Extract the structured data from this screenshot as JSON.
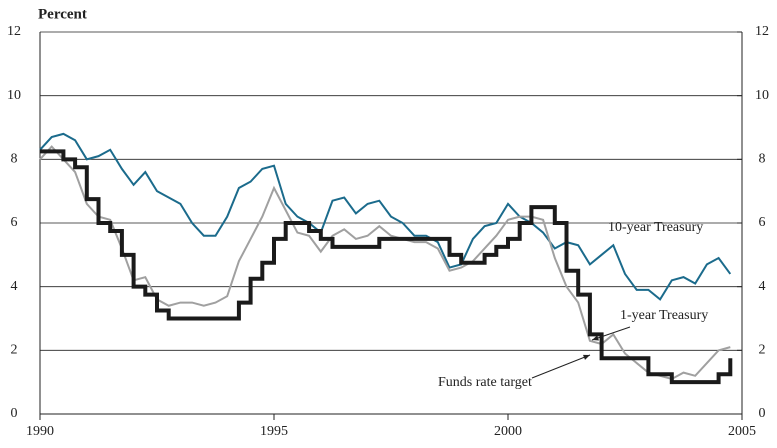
{
  "chart_data": {
    "type": "line",
    "title": "Percent",
    "x": [
      1990,
      1990.25,
      1990.5,
      1990.75,
      1991,
      1991.25,
      1991.5,
      1991.75,
      1992,
      1992.25,
      1992.5,
      1992.75,
      1993,
      1993.25,
      1993.5,
      1993.75,
      1994,
      1994.25,
      1994.5,
      1994.75,
      1995,
      1995.25,
      1995.5,
      1995.75,
      1996,
      1996.25,
      1996.5,
      1996.75,
      1997,
      1997.25,
      1997.5,
      1997.75,
      1998,
      1998.25,
      1998.5,
      1998.75,
      1999,
      1999.25,
      1999.5,
      1999.75,
      2000,
      2000.25,
      2000.5,
      2000.75,
      2001,
      2001.25,
      2001.5,
      2001.75,
      2002,
      2002.25,
      2002.5,
      2002.75,
      2003,
      2003.25,
      2003.5,
      2003.75,
      2004,
      2004.25,
      2004.5,
      2004.75
    ],
    "series": [
      {
        "name": "10-year Treasury",
        "color": "#1b6b8c",
        "width": 2,
        "values": [
          8.3,
          8.7,
          8.8,
          8.6,
          8.0,
          8.1,
          8.3,
          7.7,
          7.2,
          7.6,
          7.0,
          6.8,
          6.6,
          6.0,
          5.6,
          5.6,
          6.2,
          7.1,
          7.3,
          7.7,
          7.8,
          6.6,
          6.2,
          6.0,
          5.7,
          6.7,
          6.8,
          6.3,
          6.6,
          6.7,
          6.2,
          6.0,
          5.6,
          5.6,
          5.4,
          4.6,
          4.7,
          5.5,
          5.9,
          6.0,
          6.6,
          6.2,
          6.0,
          5.7,
          5.2,
          5.4,
          5.3,
          4.7,
          5.0,
          5.3,
          4.4,
          3.9,
          3.9,
          3.6,
          4.2,
          4.3,
          4.1,
          4.7,
          4.9,
          4.4
        ]
      },
      {
        "name": "1-year Treasury",
        "color": "#a0a0a0",
        "width": 2,
        "values": [
          8.0,
          8.4,
          8.0,
          7.6,
          6.6,
          6.2,
          6.1,
          5.2,
          4.2,
          4.3,
          3.6,
          3.4,
          3.5,
          3.5,
          3.4,
          3.5,
          3.7,
          4.8,
          5.5,
          6.2,
          7.1,
          6.4,
          5.7,
          5.6,
          5.1,
          5.6,
          5.8,
          5.5,
          5.6,
          5.9,
          5.6,
          5.5,
          5.4,
          5.4,
          5.2,
          4.5,
          4.6,
          4.8,
          5.2,
          5.6,
          6.1,
          6.2,
          6.2,
          6.1,
          4.9,
          4.0,
          3.5,
          2.3,
          2.2,
          2.5,
          1.9,
          1.6,
          1.3,
          1.2,
          1.1,
          1.3,
          1.2,
          1.6,
          2.0,
          2.1
        ]
      },
      {
        "name": "Funds rate target",
        "color": "#1a1a1a",
        "width": 4,
        "step": true,
        "values": [
          8.25,
          8.25,
          8.0,
          7.75,
          6.75,
          6.0,
          5.75,
          5.0,
          4.0,
          3.75,
          3.25,
          3.0,
          3.0,
          3.0,
          3.0,
          3.0,
          3.0,
          3.5,
          4.25,
          4.75,
          5.5,
          6.0,
          6.0,
          5.75,
          5.5,
          5.25,
          5.25,
          5.25,
          5.25,
          5.5,
          5.5,
          5.5,
          5.5,
          5.5,
          5.5,
          5.0,
          4.75,
          4.75,
          5.0,
          5.25,
          5.5,
          6.0,
          6.5,
          6.5,
          6.0,
          4.5,
          3.75,
          2.5,
          1.75,
          1.75,
          1.75,
          1.75,
          1.25,
          1.25,
          1.0,
          1.0,
          1.0,
          1.0,
          1.25,
          1.75
        ]
      }
    ],
    "annotations": [
      "10-year Treasury",
      "1-year Treasury",
      "Funds rate target"
    ],
    "xlim": [
      1990,
      2005
    ],
    "xticks": [
      1990,
      1995,
      2000,
      2005
    ],
    "ylim": [
      0,
      12
    ],
    "yticks": [
      0,
      2,
      4,
      6,
      8,
      10,
      12
    ],
    "y2lim": [
      0,
      12
    ],
    "y2ticks": [
      0,
      2,
      4,
      6,
      8,
      10,
      12
    ],
    "grid": true
  }
}
